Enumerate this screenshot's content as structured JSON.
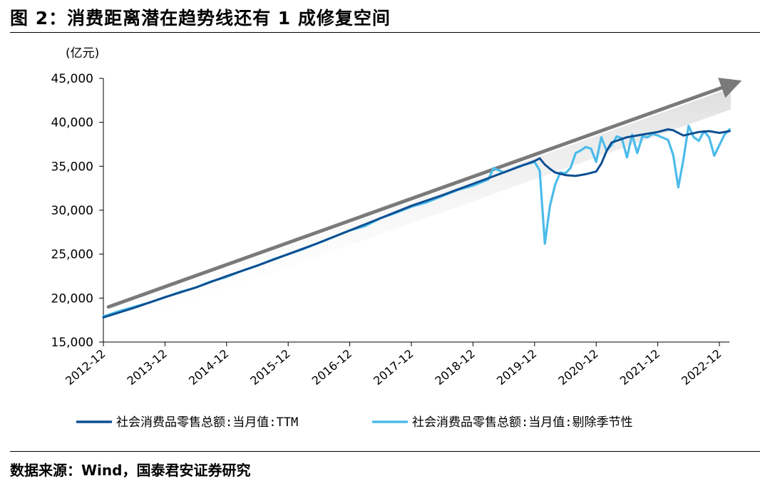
{
  "title": "图 2：消费距离潜在趋势线还有 1 成修复空间",
  "source": "数据来源：Wind，国泰君安证券研究",
  "chart_data": {
    "type": "line",
    "ylabel": "(亿元)",
    "ylim": [
      15000,
      45000
    ],
    "yticks": [
      15000,
      20000,
      25000,
      30000,
      35000,
      40000,
      45000
    ],
    "ytick_labels": [
      "15,000",
      "20,000",
      "25,000",
      "30,000",
      "35,000",
      "40,000",
      "45,000"
    ],
    "xtick_labels": [
      "2012-12",
      "2013-12",
      "2014-12",
      "2015-12",
      "2016-12",
      "2017-12",
      "2018-12",
      "2019-12",
      "2020-12",
      "2021-12",
      "2022-12"
    ],
    "x_range": [
      "2012-12",
      "2023-02"
    ],
    "grid": false,
    "legend_position": "bottom",
    "trend_arrow": {
      "from": [
        "2013-01",
        19000
      ],
      "to": [
        "2023-05",
        44800
      ]
    },
    "series": [
      {
        "name": "社会消费品零售总额:当月值:TTM",
        "color": "#0d4f91",
        "points": [
          [
            "2012-12",
            17800
          ],
          [
            "2013-06",
            18900
          ],
          [
            "2013-12",
            20100
          ],
          [
            "2014-06",
            21200
          ],
          [
            "2014-12",
            22500
          ],
          [
            "2015-06",
            23700
          ],
          [
            "2015-12",
            25000
          ],
          [
            "2016-06",
            26300
          ],
          [
            "2016-12",
            27700
          ],
          [
            "2017-06",
            29100
          ],
          [
            "2017-12",
            30500
          ],
          [
            "2018-06",
            31700
          ],
          [
            "2018-12",
            33000
          ],
          [
            "2019-06",
            34300
          ],
          [
            "2019-12",
            35600
          ],
          [
            "2020-01",
            35900
          ],
          [
            "2020-02",
            35200
          ],
          [
            "2020-03",
            34700
          ],
          [
            "2020-04",
            34300
          ],
          [
            "2020-06",
            34000
          ],
          [
            "2020-08",
            33900
          ],
          [
            "2020-10",
            34100
          ],
          [
            "2020-12",
            34400
          ],
          [
            "2021-01",
            35300
          ],
          [
            "2021-02",
            36700
          ],
          [
            "2021-03",
            37700
          ],
          [
            "2021-06",
            38300
          ],
          [
            "2021-09",
            38600
          ],
          [
            "2021-12",
            38900
          ],
          [
            "2022-02",
            39200
          ],
          [
            "2022-03",
            39100
          ],
          [
            "2022-05",
            38500
          ],
          [
            "2022-08",
            38900
          ],
          [
            "2022-10",
            39000
          ],
          [
            "2022-12",
            38800
          ],
          [
            "2023-02",
            39000
          ]
        ]
      },
      {
        "name": "社会消费品零售总额:当月值:剔除季节性",
        "color": "#4cbbea",
        "points": [
          [
            "2012-12",
            17900
          ],
          [
            "2013-03",
            18500
          ],
          [
            "2013-06",
            19000
          ],
          [
            "2013-09",
            19500
          ],
          [
            "2013-12",
            20100
          ],
          [
            "2014-03",
            20700
          ],
          [
            "2014-06",
            21200
          ],
          [
            "2014-09",
            21900
          ],
          [
            "2014-12",
            22400
          ],
          [
            "2015-03",
            23100
          ],
          [
            "2015-06",
            23700
          ],
          [
            "2015-09",
            24400
          ],
          [
            "2015-12",
            25000
          ],
          [
            "2016-03",
            25600
          ],
          [
            "2016-06",
            26300
          ],
          [
            "2016-09",
            27000
          ],
          [
            "2016-12",
            27700
          ],
          [
            "2017-03",
            28200
          ],
          [
            "2017-06",
            29100
          ],
          [
            "2017-09",
            29700
          ],
          [
            "2017-12",
            30400
          ],
          [
            "2018-03",
            30900
          ],
          [
            "2018-06",
            31600
          ],
          [
            "2018-09",
            32300
          ],
          [
            "2018-12",
            32800
          ],
          [
            "2019-03",
            33500
          ],
          [
            "2019-04",
            34800
          ],
          [
            "2019-06",
            34300
          ],
          [
            "2019-09",
            35000
          ],
          [
            "2019-12",
            35500
          ],
          [
            "2020-01",
            34500
          ],
          [
            "2020-02",
            26200
          ],
          [
            "2020-03",
            30500
          ],
          [
            "2020-04",
            32900
          ],
          [
            "2020-05",
            34300
          ],
          [
            "2020-06",
            34200
          ],
          [
            "2020-07",
            34800
          ],
          [
            "2020-08",
            36500
          ],
          [
            "2020-09",
            36800
          ],
          [
            "2020-10",
            37200
          ],
          [
            "2020-11",
            37000
          ],
          [
            "2020-12",
            35500
          ],
          [
            "2021-01",
            38300
          ],
          [
            "2021-02",
            36800
          ],
          [
            "2021-03",
            37400
          ],
          [
            "2021-04",
            38400
          ],
          [
            "2021-05",
            38200
          ],
          [
            "2021-06",
            36000
          ],
          [
            "2021-07",
            38600
          ],
          [
            "2021-08",
            36500
          ],
          [
            "2021-09",
            38400
          ],
          [
            "2021-10",
            38300
          ],
          [
            "2021-11",
            38700
          ],
          [
            "2021-12",
            38500
          ],
          [
            "2022-02",
            38000
          ],
          [
            "2022-03",
            36300
          ],
          [
            "2022-04",
            32600
          ],
          [
            "2022-05",
            35800
          ],
          [
            "2022-06",
            39600
          ],
          [
            "2022-07",
            38300
          ],
          [
            "2022-08",
            37900
          ],
          [
            "2022-09",
            39000
          ],
          [
            "2022-10",
            38300
          ],
          [
            "2022-11",
            36200
          ],
          [
            "2022-12",
            37400
          ],
          [
            "2023-01",
            38600
          ],
          [
            "2023-02",
            39200
          ]
        ]
      }
    ]
  }
}
